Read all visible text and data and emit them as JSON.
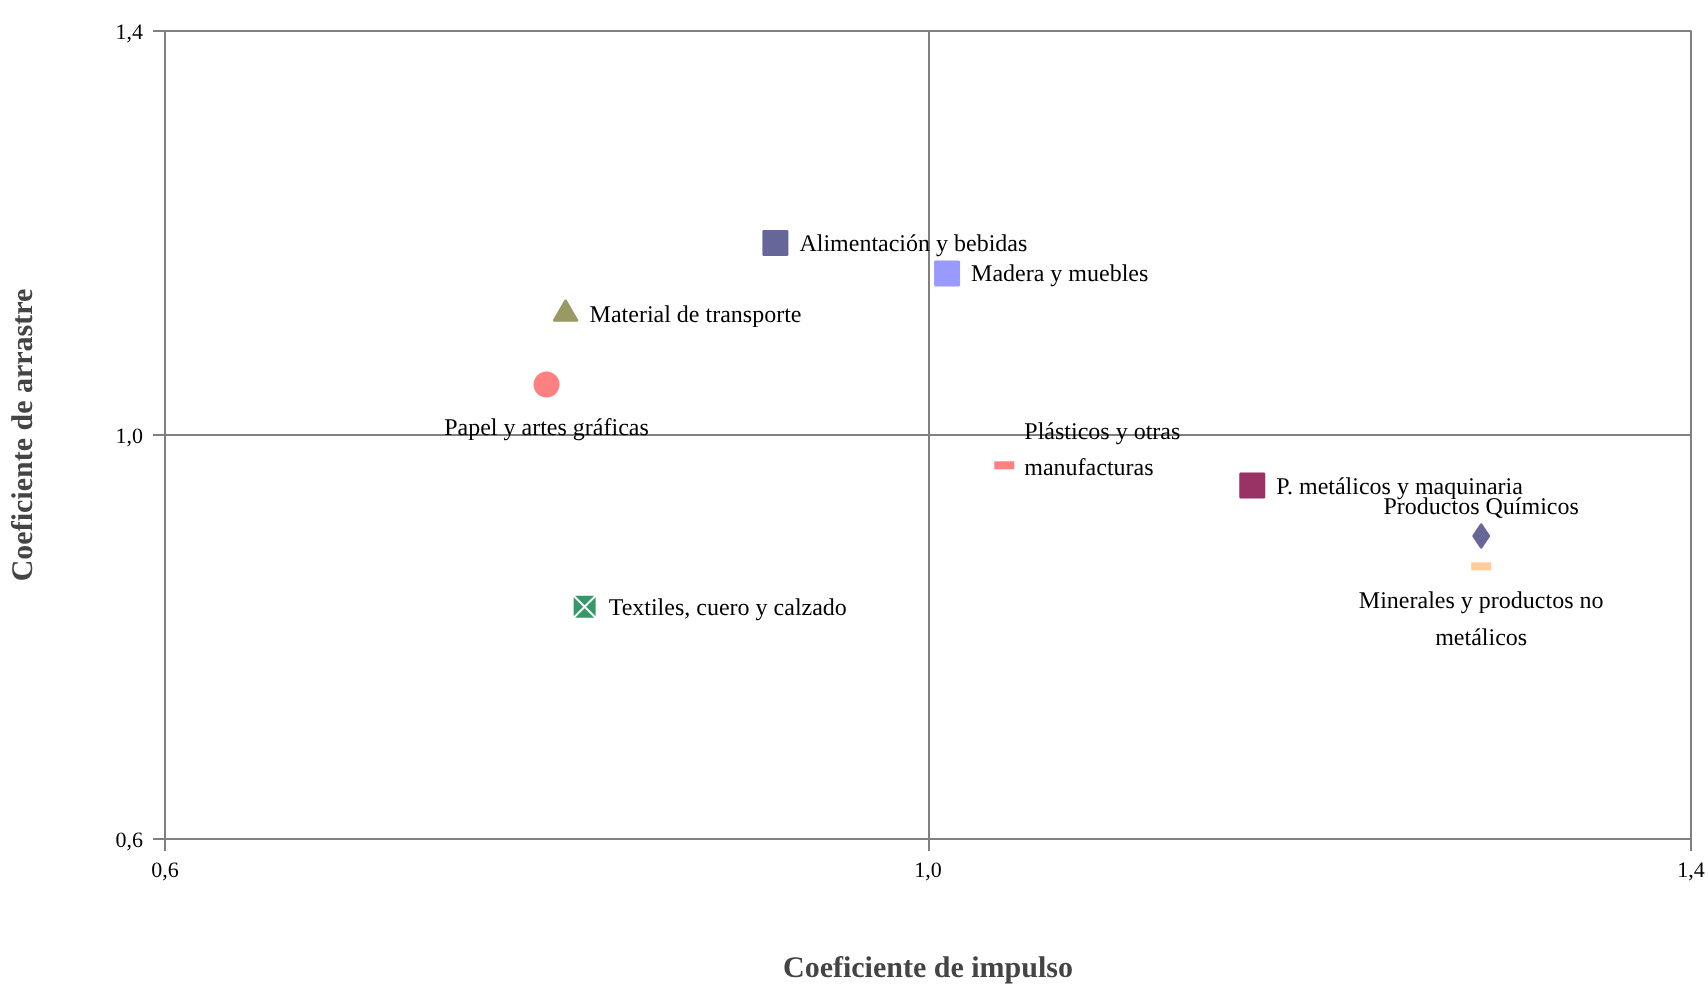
{
  "chart_data": {
    "type": "scatter",
    "xlabel": "Coeficiente de impulso",
    "ylabel": "Coeficiente de arrastre",
    "xlim": [
      0.6,
      1.4
    ],
    "ylim": [
      0.6,
      1.4
    ],
    "xticks": [
      {
        "value": 0.6,
        "label": "0,6"
      },
      {
        "value": 1.0,
        "label": "1,0"
      },
      {
        "value": 1.4,
        "label": "1,4"
      }
    ],
    "yticks": [
      {
        "value": 0.6,
        "label": "0,6"
      },
      {
        "value": 1.0,
        "label": "1,0"
      },
      {
        "value": 1.4,
        "label": "1,4"
      }
    ],
    "grid": true,
    "series": [
      {
        "name": "Alimentación y bebidas",
        "color": "#666699",
        "marker": "square",
        "x": [
          0.92
        ],
        "values": [
          1.19
        ]
      },
      {
        "name": "Madera y muebles",
        "color": "#9999ff",
        "marker": "square",
        "x": [
          1.01
        ],
        "values": [
          1.16
        ]
      },
      {
        "name": "Material de transporte",
        "color": "#999966",
        "marker": "triangle",
        "x": [
          0.81
        ],
        "values": [
          1.12
        ]
      },
      {
        "name": "Papel y artes gráficas",
        "color": "#ff8080",
        "marker": "circle",
        "x": [
          0.8
        ],
        "values": [
          1.05
        ]
      },
      {
        "name": "Plásticos y otras\nmanufacturas",
        "color": "#ff8080",
        "x": [
          1.04
        ],
        "values": [
          0.97
        ]
      },
      {
        "name": "P. metálicos y maquinaria",
        "color": "#993366",
        "marker": "square",
        "x": [
          1.17
        ],
        "values": [
          0.95
        ]
      },
      {
        "name": "Productos Químicos",
        "color": "#666699",
        "marker": "diamond",
        "x": [
          1.29
        ],
        "values": [
          0.9
        ]
      },
      {
        "name": "Minerales y productos no\nmetálicos",
        "color": "#ffcc99",
        "x": [
          1.29
        ],
        "values": [
          0.87
        ]
      },
      {
        "name": "Textiles, cuero y calzado",
        "color": "#339966",
        "marker": "cross",
        "x": [
          0.82
        ],
        "values": [
          0.83
        ]
      }
    ]
  }
}
